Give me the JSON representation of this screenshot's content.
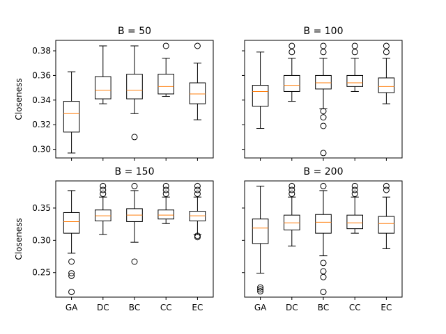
{
  "chart_data": {
    "type": "box",
    "ylabel": "Closeness",
    "categories": [
      "GA",
      "DC",
      "BC",
      "CC",
      "EC"
    ],
    "colors": {
      "median": "#ff7f0e",
      "box": "#000000",
      "flier": "#000000"
    },
    "subplots": [
      {
        "title": "B = 50",
        "ylim": [
          0.293,
          0.3885
        ],
        "yticks": [
          0.3,
          0.32,
          0.34,
          0.36,
          0.38
        ],
        "ytick_labels": [
          "0.30",
          "0.32",
          "0.34",
          "0.36",
          "0.38"
        ],
        "show_ytick_labels": true,
        "show_ylabel": true,
        "show_xtick_labels": false,
        "boxes": [
          {
            "category": "GA",
            "whislo": 0.297,
            "q1": 0.314,
            "med": 0.329,
            "q3": 0.339,
            "whishi": 0.363,
            "fliers": []
          },
          {
            "category": "DC",
            "whislo": 0.337,
            "q1": 0.341,
            "med": 0.348,
            "q3": 0.359,
            "whishi": 0.384,
            "fliers": []
          },
          {
            "category": "BC",
            "whislo": 0.329,
            "q1": 0.341,
            "med": 0.348,
            "q3": 0.361,
            "whishi": 0.384,
            "fliers": [
              0.31
            ]
          },
          {
            "category": "CC",
            "whislo": 0.343,
            "q1": 0.345,
            "med": 0.351,
            "q3": 0.361,
            "whishi": 0.374,
            "fliers": [
              0.384
            ]
          },
          {
            "category": "EC",
            "whislo": 0.324,
            "q1": 0.337,
            "med": 0.345,
            "q3": 0.354,
            "whishi": 0.37,
            "fliers": [
              0.384
            ]
          }
        ]
      },
      {
        "title": "B = 100",
        "ylim": [
          0.293,
          0.3885
        ],
        "yticks": [
          0.3,
          0.32,
          0.34,
          0.36,
          0.38
        ],
        "ytick_labels": [
          "0.30",
          "0.32",
          "0.34",
          "0.36",
          "0.38"
        ],
        "show_ytick_labels": false,
        "show_ylabel": false,
        "show_xtick_labels": false,
        "boxes": [
          {
            "category": "GA",
            "whislo": 0.317,
            "q1": 0.335,
            "med": 0.347,
            "q3": 0.352,
            "whishi": 0.379,
            "fliers": []
          },
          {
            "category": "DC",
            "whislo": 0.339,
            "q1": 0.347,
            "med": 0.352,
            "q3": 0.36,
            "whishi": 0.374,
            "fliers": [
              0.379,
              0.384
            ]
          },
          {
            "category": "BC",
            "whislo": 0.333,
            "q1": 0.349,
            "med": 0.354,
            "q3": 0.36,
            "whishi": 0.374,
            "fliers": [
              0.297,
              0.319,
              0.326,
              0.331,
              0.379,
              0.384
            ]
          },
          {
            "category": "CC",
            "whislo": 0.347,
            "q1": 0.351,
            "med": 0.354,
            "q3": 0.36,
            "whishi": 0.374,
            "fliers": [
              0.379,
              0.384
            ]
          },
          {
            "category": "EC",
            "whislo": 0.337,
            "q1": 0.346,
            "med": 0.351,
            "q3": 0.358,
            "whishi": 0.374,
            "fliers": [
              0.379,
              0.384
            ]
          }
        ]
      },
      {
        "title": "B = 150",
        "ylim": [
          0.212,
          0.392
        ],
        "yticks": [
          0.25,
          0.3,
          0.35
        ],
        "ytick_labels": [
          "0.25",
          "0.30",
          "0.35"
        ],
        "show_ytick_labels": true,
        "show_ylabel": true,
        "show_xtick_labels": true,
        "boxes": [
          {
            "category": "GA",
            "whislo": 0.28,
            "q1": 0.311,
            "med": 0.329,
            "q3": 0.343,
            "whishi": 0.377,
            "fliers": [
              0.22,
              0.245,
              0.249,
              0.267
            ]
          },
          {
            "category": "DC",
            "whislo": 0.309,
            "q1": 0.33,
            "med": 0.338,
            "q3": 0.347,
            "whishi": 0.367,
            "fliers": [
              0.372,
              0.378,
              0.384
            ]
          },
          {
            "category": "BC",
            "whislo": 0.297,
            "q1": 0.329,
            "med": 0.339,
            "q3": 0.349,
            "whishi": 0.377,
            "fliers": [
              0.267,
              0.384
            ]
          },
          {
            "category": "CC",
            "whislo": 0.326,
            "q1": 0.333,
            "med": 0.339,
            "q3": 0.347,
            "whishi": 0.367,
            "fliers": [
              0.372,
              0.378,
              0.384
            ]
          },
          {
            "category": "EC",
            "whislo": 0.309,
            "q1": 0.33,
            "med": 0.338,
            "q3": 0.345,
            "whishi": 0.367,
            "fliers": [
              0.305,
              0.307,
              0.372,
              0.378,
              0.384
            ]
          }
        ]
      },
      {
        "title": "B = 200",
        "ylim": [
          0.212,
          0.392
        ],
        "yticks": [
          0.25,
          0.3,
          0.35
        ],
        "ytick_labels": [
          "0.25",
          "0.30",
          "0.35"
        ],
        "show_ytick_labels": false,
        "show_ylabel": false,
        "show_xtick_labels": true,
        "boxes": [
          {
            "category": "GA",
            "whislo": 0.249,
            "q1": 0.295,
            "med": 0.319,
            "q3": 0.333,
            "whishi": 0.384,
            "fliers": [
              0.221,
              0.224,
              0.227
            ]
          },
          {
            "category": "DC",
            "whislo": 0.291,
            "q1": 0.316,
            "med": 0.327,
            "q3": 0.339,
            "whishi": 0.367,
            "fliers": [
              0.372,
              0.378,
              0.384
            ]
          },
          {
            "category": "BC",
            "whislo": 0.276,
            "q1": 0.311,
            "med": 0.328,
            "q3": 0.34,
            "whishi": 0.377,
            "fliers": [
              0.22,
              0.243,
              0.252,
              0.265,
              0.384
            ]
          },
          {
            "category": "CC",
            "whislo": 0.311,
            "q1": 0.318,
            "med": 0.327,
            "q3": 0.339,
            "whishi": 0.367,
            "fliers": [
              0.372,
              0.378,
              0.384
            ]
          },
          {
            "category": "EC",
            "whislo": 0.287,
            "q1": 0.311,
            "med": 0.326,
            "q3": 0.337,
            "whishi": 0.367,
            "fliers": [
              0.378,
              0.384
            ]
          }
        ]
      }
    ]
  }
}
